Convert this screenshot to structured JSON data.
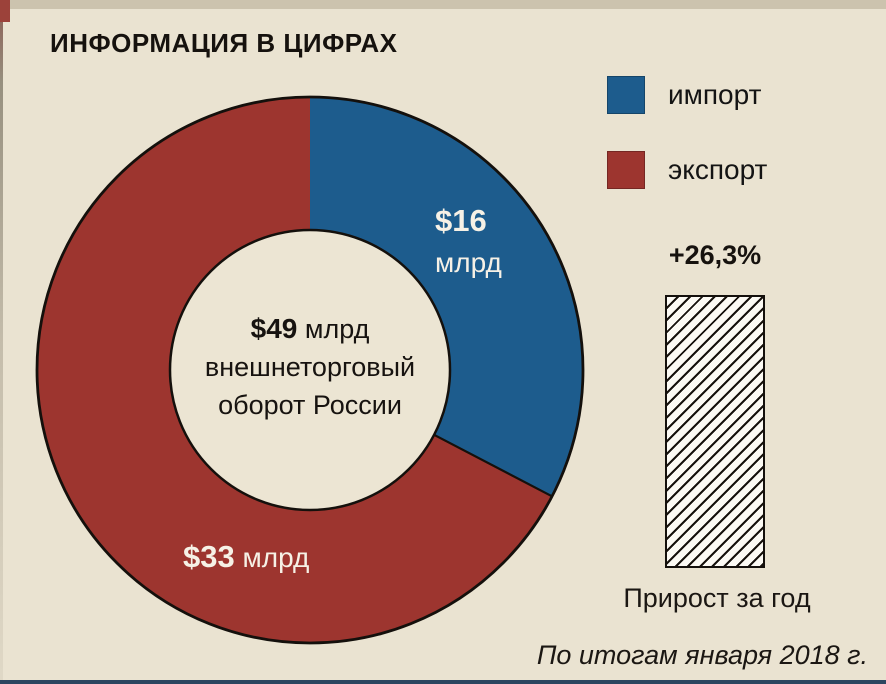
{
  "page": {
    "title": "ИНФОРМАЦИЯ В ЦИФРАХ",
    "footnote": "По итогам января 2018 г."
  },
  "colors": {
    "background": "#EAE3D1",
    "import_blue": "#1D5C8D",
    "export_red": "#9D352F",
    "outline": "#14100C",
    "hole_fill": "#ECE5D3",
    "text": "#171310",
    "bottom_edge": "#2C4660"
  },
  "chart_data": {
    "type": "pie",
    "subtype": "donut",
    "title": "ИНФОРМАЦИЯ В ЦИФРАХ",
    "unit": "млрд $",
    "total": 49,
    "center_label": {
      "value": "$49",
      "unit": "млрд",
      "line2": "внешнеторговый",
      "line3": "оборот России"
    },
    "slices": [
      {
        "name": "импорт",
        "value": 16,
        "value_label": "$16",
        "unit": "млрд",
        "color": "#1D5C8D"
      },
      {
        "name": "экспорт",
        "value": 33,
        "value_label": "$33",
        "unit": "млрд",
        "color": "#9D352F"
      }
    ],
    "legend": [
      {
        "label": "импорт",
        "color": "#1D5C8D"
      },
      {
        "label": "экспорт",
        "color": "#9D352F"
      }
    ],
    "growth_bar": {
      "value": 26.3,
      "value_label": "+26,3%",
      "caption": "Прирост за год",
      "style": "hatched-white-bar"
    },
    "footnote": "По итогам января 2018 г.",
    "layout": {
      "legend_position": "top-right",
      "grid": false
    }
  }
}
